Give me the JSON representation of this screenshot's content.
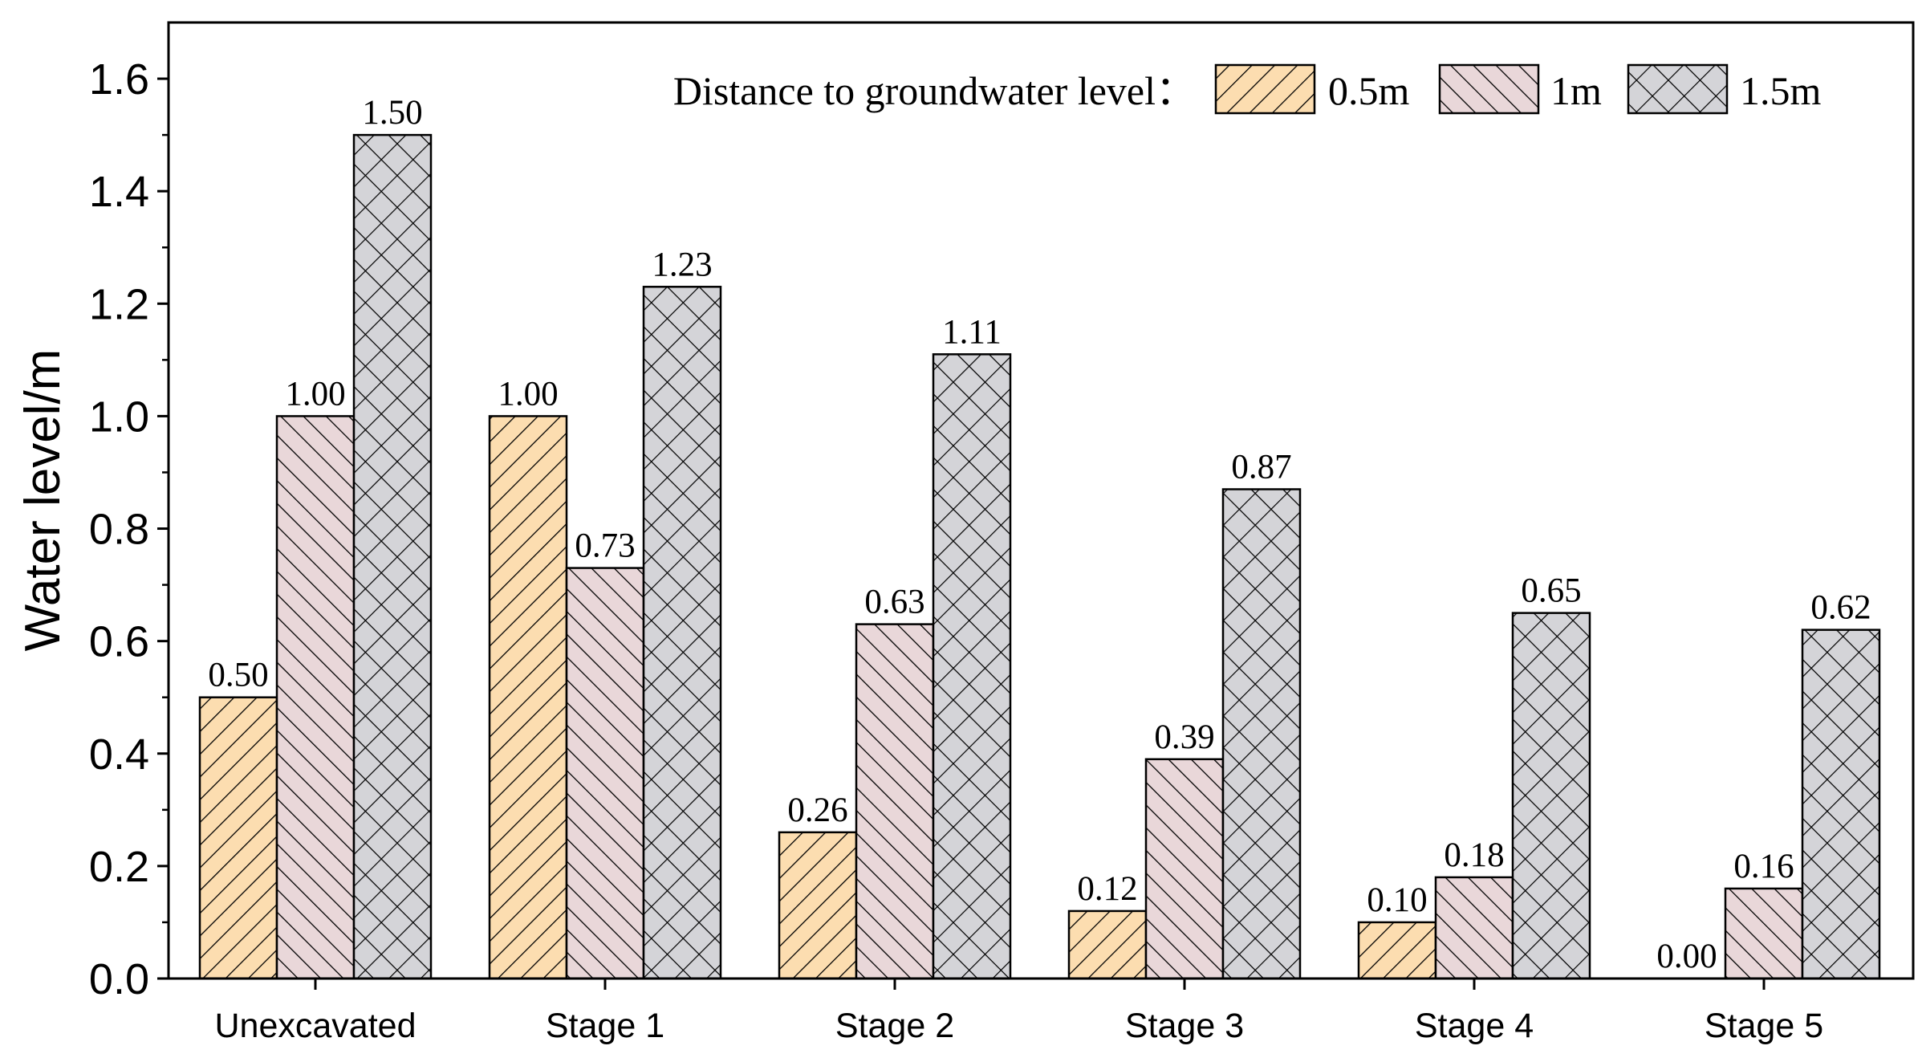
{
  "chart_data": {
    "type": "bar",
    "categories": [
      "Unexcavated",
      "Stage 1",
      "Stage 2",
      "Stage 3",
      "Stage 4",
      "Stage 5"
    ],
    "series": [
      {
        "name": "0.5m",
        "values": [
          0.5,
          1.0,
          0.26,
          0.12,
          0.1,
          0.0
        ],
        "labels": [
          "0.50",
          "1.00",
          "0.26",
          "0.12",
          "0.10",
          "0.00"
        ],
        "color": "#FCDDB0",
        "hatch": "forward-diagonal"
      },
      {
        "name": "1m",
        "values": [
          1.0,
          0.73,
          0.63,
          0.39,
          0.18,
          0.16
        ],
        "labels": [
          "1.00",
          "0.73",
          "0.63",
          "0.39",
          "0.18",
          "0.16"
        ],
        "color": "#E9D7D9",
        "hatch": "back-diagonal"
      },
      {
        "name": "1.5m",
        "values": [
          1.5,
          1.23,
          1.11,
          0.87,
          0.65,
          0.62
        ],
        "labels": [
          "1.50",
          "1.23",
          "1.11",
          "0.87",
          "0.65",
          "0.62"
        ],
        "color": "#D4D4D8",
        "hatch": "crosshatch"
      }
    ],
    "ylabel": "Water level/m",
    "xlabel": "",
    "ylim": [
      0,
      1.7
    ],
    "yticks": [
      "0.0",
      "0.2",
      "0.4",
      "0.6",
      "0.8",
      "1.0",
      "1.2",
      "1.4",
      "1.6"
    ],
    "legend_title": "Distance to groundwater level：",
    "legend_position": "top-right",
    "grid": false
  }
}
